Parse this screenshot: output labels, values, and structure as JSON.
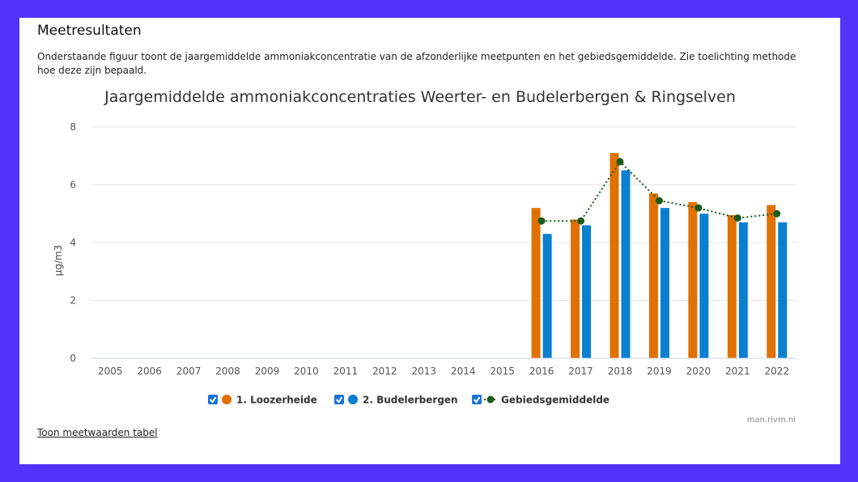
{
  "page": {
    "section_title": "Meetresultaten",
    "description": "Onderstaande figuur toont de jaargemiddelde ammoniakconcentratie van de afzonderlijke meetpunten en het gebiedsgemiddelde. Zie toelichting methode hoe deze zijn bepaald.",
    "table_link": "Toon meetwaarden tabel",
    "credits": "man.rivm.nl",
    "background_color": "#5533ff"
  },
  "chart_data": {
    "type": "bar",
    "title": "Jaargemiddelde ammoniakconcentraties Weerter- en Budelerbergen & Ringselven",
    "ylabel": "µg/m3",
    "xlabel": "",
    "ylim": [
      0,
      8
    ],
    "yticks": [
      0,
      2,
      4,
      6,
      8
    ],
    "grid": true,
    "legend_position": "bottom-center",
    "categories": [
      "2005",
      "2006",
      "2007",
      "2008",
      "2009",
      "2010",
      "2011",
      "2012",
      "2013",
      "2014",
      "2015",
      "2016",
      "2017",
      "2018",
      "2019",
      "2020",
      "2021",
      "2022"
    ],
    "series": [
      {
        "name": "1. Loozerheide",
        "type": "bar",
        "color": "#e07000",
        "values": [
          null,
          null,
          null,
          null,
          null,
          null,
          null,
          null,
          null,
          null,
          null,
          5.2,
          4.8,
          7.1,
          5.7,
          5.4,
          4.95,
          5.3
        ]
      },
      {
        "name": "2. Budelerbergen",
        "type": "bar",
        "color": "#0a7fd0",
        "values": [
          null,
          null,
          null,
          null,
          null,
          null,
          null,
          null,
          null,
          null,
          null,
          4.3,
          4.6,
          6.5,
          5.2,
          5.0,
          4.7,
          4.7
        ]
      },
      {
        "name": "Gebiedsgemiddelde",
        "type": "line",
        "style": "dotted",
        "color": "#1a5a1a",
        "values": [
          null,
          null,
          null,
          null,
          null,
          null,
          null,
          null,
          null,
          null,
          null,
          4.75,
          4.75,
          6.8,
          5.45,
          5.2,
          4.85,
          5.0
        ]
      }
    ]
  }
}
